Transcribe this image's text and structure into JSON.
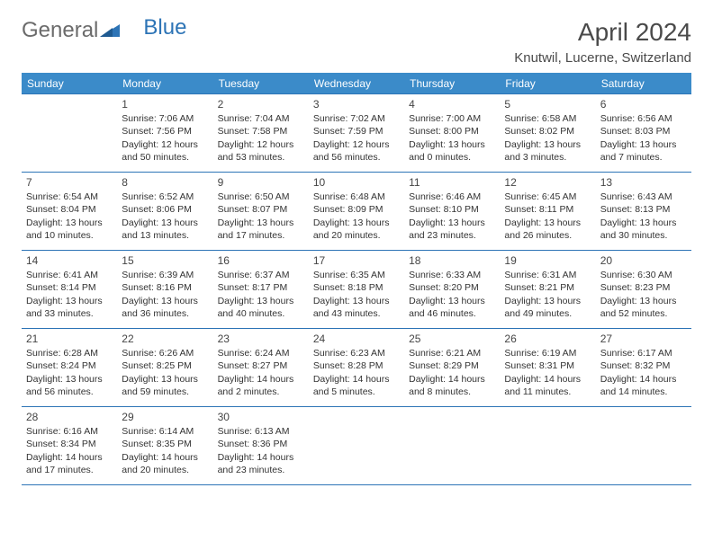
{
  "logo": {
    "text_general": "General",
    "text_blue": "Blue"
  },
  "title": {
    "month": "April 2024",
    "location": "Knutwil, Lucerne, Switzerland"
  },
  "colors": {
    "header_bg": "#3b8bc9",
    "header_text": "#ffffff",
    "border": "#2d74b6",
    "body_text": "#333333",
    "daynum_shade": "#eeeeee",
    "logo_gray": "#6b6b6b",
    "logo_blue": "#2d74b6"
  },
  "day_names": [
    "Sunday",
    "Monday",
    "Tuesday",
    "Wednesday",
    "Thursday",
    "Friday",
    "Saturday"
  ],
  "weeks": [
    [
      {
        "num": "",
        "sunrise": "",
        "sunset": "",
        "daylight": ""
      },
      {
        "num": "1",
        "sunrise": "Sunrise: 7:06 AM",
        "sunset": "Sunset: 7:56 PM",
        "daylight": "Daylight: 12 hours and 50 minutes."
      },
      {
        "num": "2",
        "sunrise": "Sunrise: 7:04 AM",
        "sunset": "Sunset: 7:58 PM",
        "daylight": "Daylight: 12 hours and 53 minutes."
      },
      {
        "num": "3",
        "sunrise": "Sunrise: 7:02 AM",
        "sunset": "Sunset: 7:59 PM",
        "daylight": "Daylight: 12 hours and 56 minutes."
      },
      {
        "num": "4",
        "sunrise": "Sunrise: 7:00 AM",
        "sunset": "Sunset: 8:00 PM",
        "daylight": "Daylight: 13 hours and 0 minutes."
      },
      {
        "num": "5",
        "sunrise": "Sunrise: 6:58 AM",
        "sunset": "Sunset: 8:02 PM",
        "daylight": "Daylight: 13 hours and 3 minutes."
      },
      {
        "num": "6",
        "sunrise": "Sunrise: 6:56 AM",
        "sunset": "Sunset: 8:03 PM",
        "daylight": "Daylight: 13 hours and 7 minutes."
      }
    ],
    [
      {
        "num": "7",
        "sunrise": "Sunrise: 6:54 AM",
        "sunset": "Sunset: 8:04 PM",
        "daylight": "Daylight: 13 hours and 10 minutes."
      },
      {
        "num": "8",
        "sunrise": "Sunrise: 6:52 AM",
        "sunset": "Sunset: 8:06 PM",
        "daylight": "Daylight: 13 hours and 13 minutes."
      },
      {
        "num": "9",
        "sunrise": "Sunrise: 6:50 AM",
        "sunset": "Sunset: 8:07 PM",
        "daylight": "Daylight: 13 hours and 17 minutes."
      },
      {
        "num": "10",
        "sunrise": "Sunrise: 6:48 AM",
        "sunset": "Sunset: 8:09 PM",
        "daylight": "Daylight: 13 hours and 20 minutes."
      },
      {
        "num": "11",
        "sunrise": "Sunrise: 6:46 AM",
        "sunset": "Sunset: 8:10 PM",
        "daylight": "Daylight: 13 hours and 23 minutes."
      },
      {
        "num": "12",
        "sunrise": "Sunrise: 6:45 AM",
        "sunset": "Sunset: 8:11 PM",
        "daylight": "Daylight: 13 hours and 26 minutes."
      },
      {
        "num": "13",
        "sunrise": "Sunrise: 6:43 AM",
        "sunset": "Sunset: 8:13 PM",
        "daylight": "Daylight: 13 hours and 30 minutes."
      }
    ],
    [
      {
        "num": "14",
        "sunrise": "Sunrise: 6:41 AM",
        "sunset": "Sunset: 8:14 PM",
        "daylight": "Daylight: 13 hours and 33 minutes."
      },
      {
        "num": "15",
        "sunrise": "Sunrise: 6:39 AM",
        "sunset": "Sunset: 8:16 PM",
        "daylight": "Daylight: 13 hours and 36 minutes."
      },
      {
        "num": "16",
        "sunrise": "Sunrise: 6:37 AM",
        "sunset": "Sunset: 8:17 PM",
        "daylight": "Daylight: 13 hours and 40 minutes."
      },
      {
        "num": "17",
        "sunrise": "Sunrise: 6:35 AM",
        "sunset": "Sunset: 8:18 PM",
        "daylight": "Daylight: 13 hours and 43 minutes."
      },
      {
        "num": "18",
        "sunrise": "Sunrise: 6:33 AM",
        "sunset": "Sunset: 8:20 PM",
        "daylight": "Daylight: 13 hours and 46 minutes."
      },
      {
        "num": "19",
        "sunrise": "Sunrise: 6:31 AM",
        "sunset": "Sunset: 8:21 PM",
        "daylight": "Daylight: 13 hours and 49 minutes."
      },
      {
        "num": "20",
        "sunrise": "Sunrise: 6:30 AM",
        "sunset": "Sunset: 8:23 PM",
        "daylight": "Daylight: 13 hours and 52 minutes."
      }
    ],
    [
      {
        "num": "21",
        "sunrise": "Sunrise: 6:28 AM",
        "sunset": "Sunset: 8:24 PM",
        "daylight": "Daylight: 13 hours and 56 minutes."
      },
      {
        "num": "22",
        "sunrise": "Sunrise: 6:26 AM",
        "sunset": "Sunset: 8:25 PM",
        "daylight": "Daylight: 13 hours and 59 minutes."
      },
      {
        "num": "23",
        "sunrise": "Sunrise: 6:24 AM",
        "sunset": "Sunset: 8:27 PM",
        "daylight": "Daylight: 14 hours and 2 minutes."
      },
      {
        "num": "24",
        "sunrise": "Sunrise: 6:23 AM",
        "sunset": "Sunset: 8:28 PM",
        "daylight": "Daylight: 14 hours and 5 minutes."
      },
      {
        "num": "25",
        "sunrise": "Sunrise: 6:21 AM",
        "sunset": "Sunset: 8:29 PM",
        "daylight": "Daylight: 14 hours and 8 minutes."
      },
      {
        "num": "26",
        "sunrise": "Sunrise: 6:19 AM",
        "sunset": "Sunset: 8:31 PM",
        "daylight": "Daylight: 14 hours and 11 minutes."
      },
      {
        "num": "27",
        "sunrise": "Sunrise: 6:17 AM",
        "sunset": "Sunset: 8:32 PM",
        "daylight": "Daylight: 14 hours and 14 minutes."
      }
    ],
    [
      {
        "num": "28",
        "sunrise": "Sunrise: 6:16 AM",
        "sunset": "Sunset: 8:34 PM",
        "daylight": "Daylight: 14 hours and 17 minutes."
      },
      {
        "num": "29",
        "sunrise": "Sunrise: 6:14 AM",
        "sunset": "Sunset: 8:35 PM",
        "daylight": "Daylight: 14 hours and 20 minutes."
      },
      {
        "num": "30",
        "sunrise": "Sunrise: 6:13 AM",
        "sunset": "Sunset: 8:36 PM",
        "daylight": "Daylight: 14 hours and 23 minutes."
      },
      {
        "num": "",
        "sunrise": "",
        "sunset": "",
        "daylight": ""
      },
      {
        "num": "",
        "sunrise": "",
        "sunset": "",
        "daylight": ""
      },
      {
        "num": "",
        "sunrise": "",
        "sunset": "",
        "daylight": ""
      },
      {
        "num": "",
        "sunrise": "",
        "sunset": "",
        "daylight": ""
      }
    ]
  ]
}
